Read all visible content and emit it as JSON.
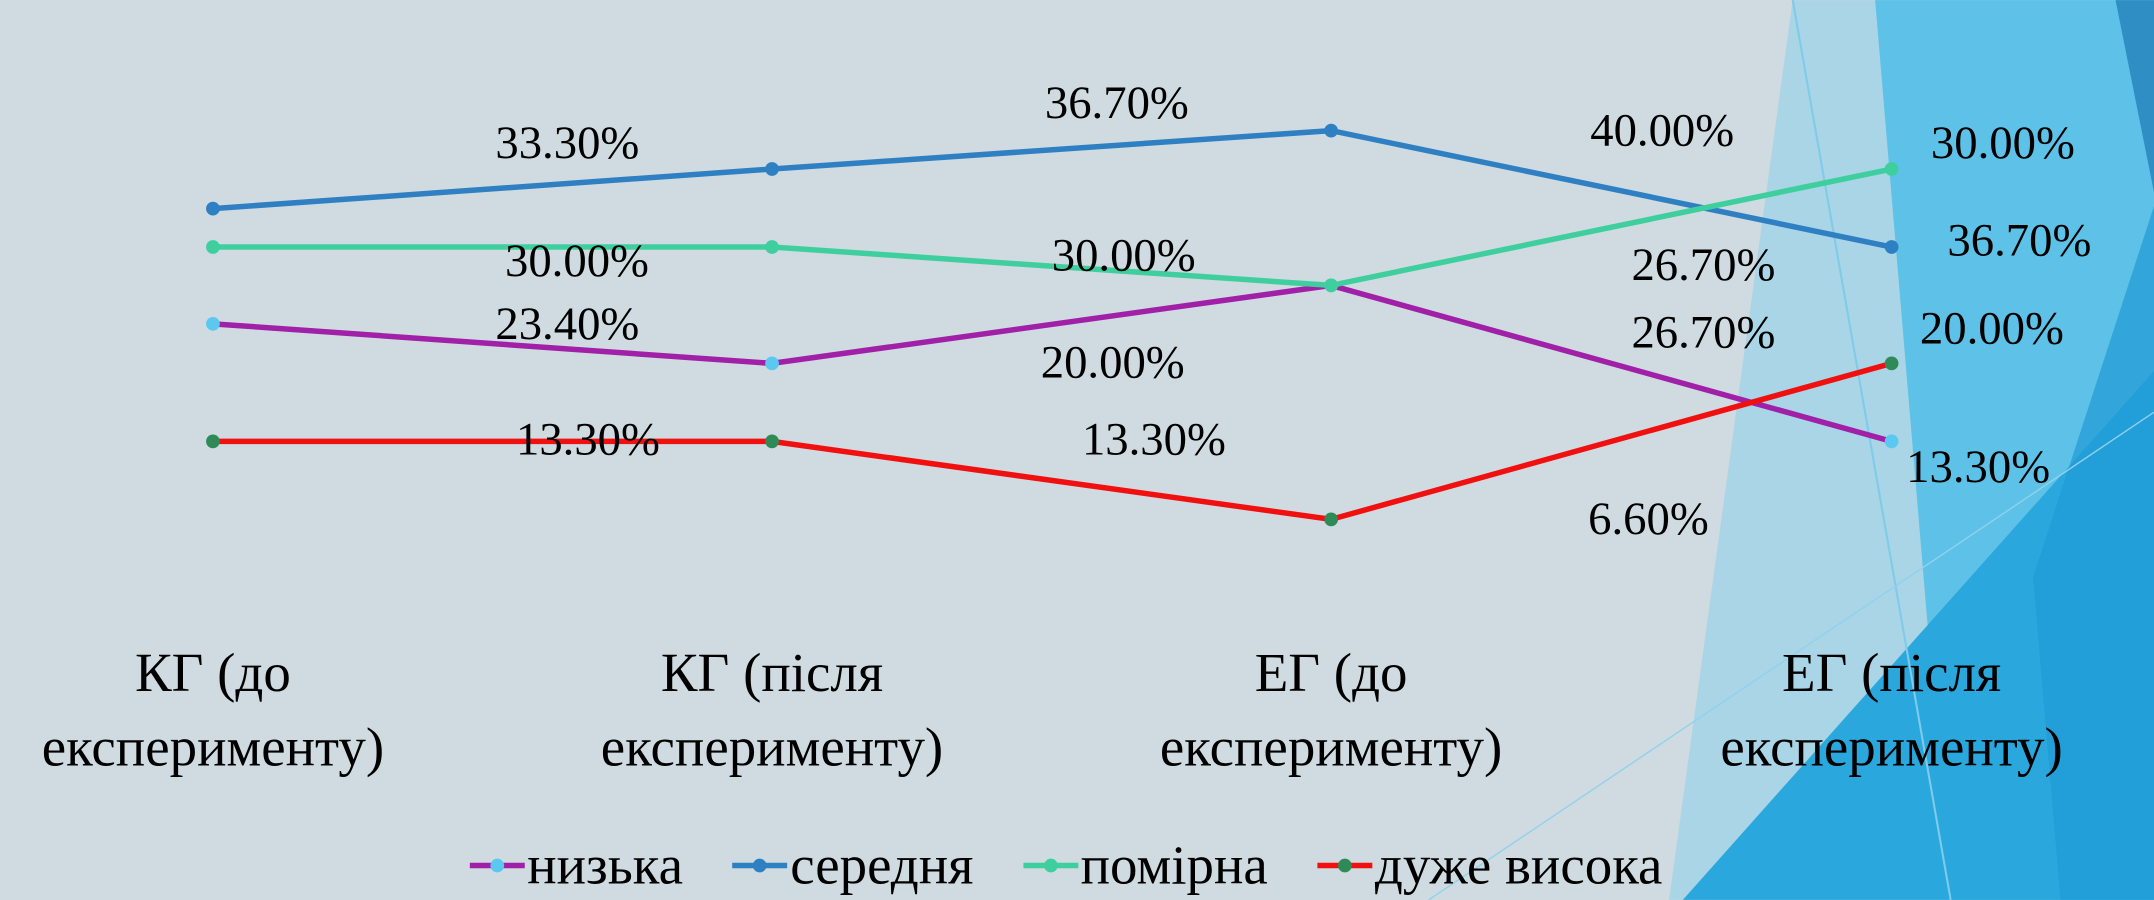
{
  "chart_data": {
    "type": "line",
    "categories": [
      "КГ (до експерименту)",
      "КГ (після експерименту)",
      "ЕГ (до експерименту)",
      "ЕГ (після експерименту)"
    ],
    "series": [
      {
        "name": "низька",
        "color": "#a020a8",
        "marker_color": "#5bc8ef",
        "values": [
          23.4,
          20.0,
          26.7,
          13.3
        ],
        "value_labels": [
          "23.40%",
          "20.00%",
          "26.70%",
          "13.30%"
        ]
      },
      {
        "name": "середня",
        "color": "#2e80c2",
        "marker_color": "#2e80c2",
        "values": [
          33.3,
          36.7,
          40.0,
          30.0
        ],
        "value_labels": [
          "33.30%",
          "36.70%",
          "40.00%",
          "30.00%"
        ]
      },
      {
        "name": "помірна",
        "color": "#3fcf9f",
        "marker_color": "#3fcf9f",
        "values": [
          30.0,
          30.0,
          26.7,
          36.7
        ],
        "value_labels": [
          "30.00%",
          "30.00%",
          "26.70%",
          "36.70%"
        ]
      },
      {
        "name": "дуже висока",
        "color": "#f01010",
        "marker_color": "#2e8b57",
        "values": [
          13.3,
          13.3,
          6.6,
          20.0
        ],
        "value_labels": [
          "13.30%",
          "13.30%",
          "6.60%",
          "20.00%"
        ]
      }
    ],
    "legend": "bottom"
  }
}
